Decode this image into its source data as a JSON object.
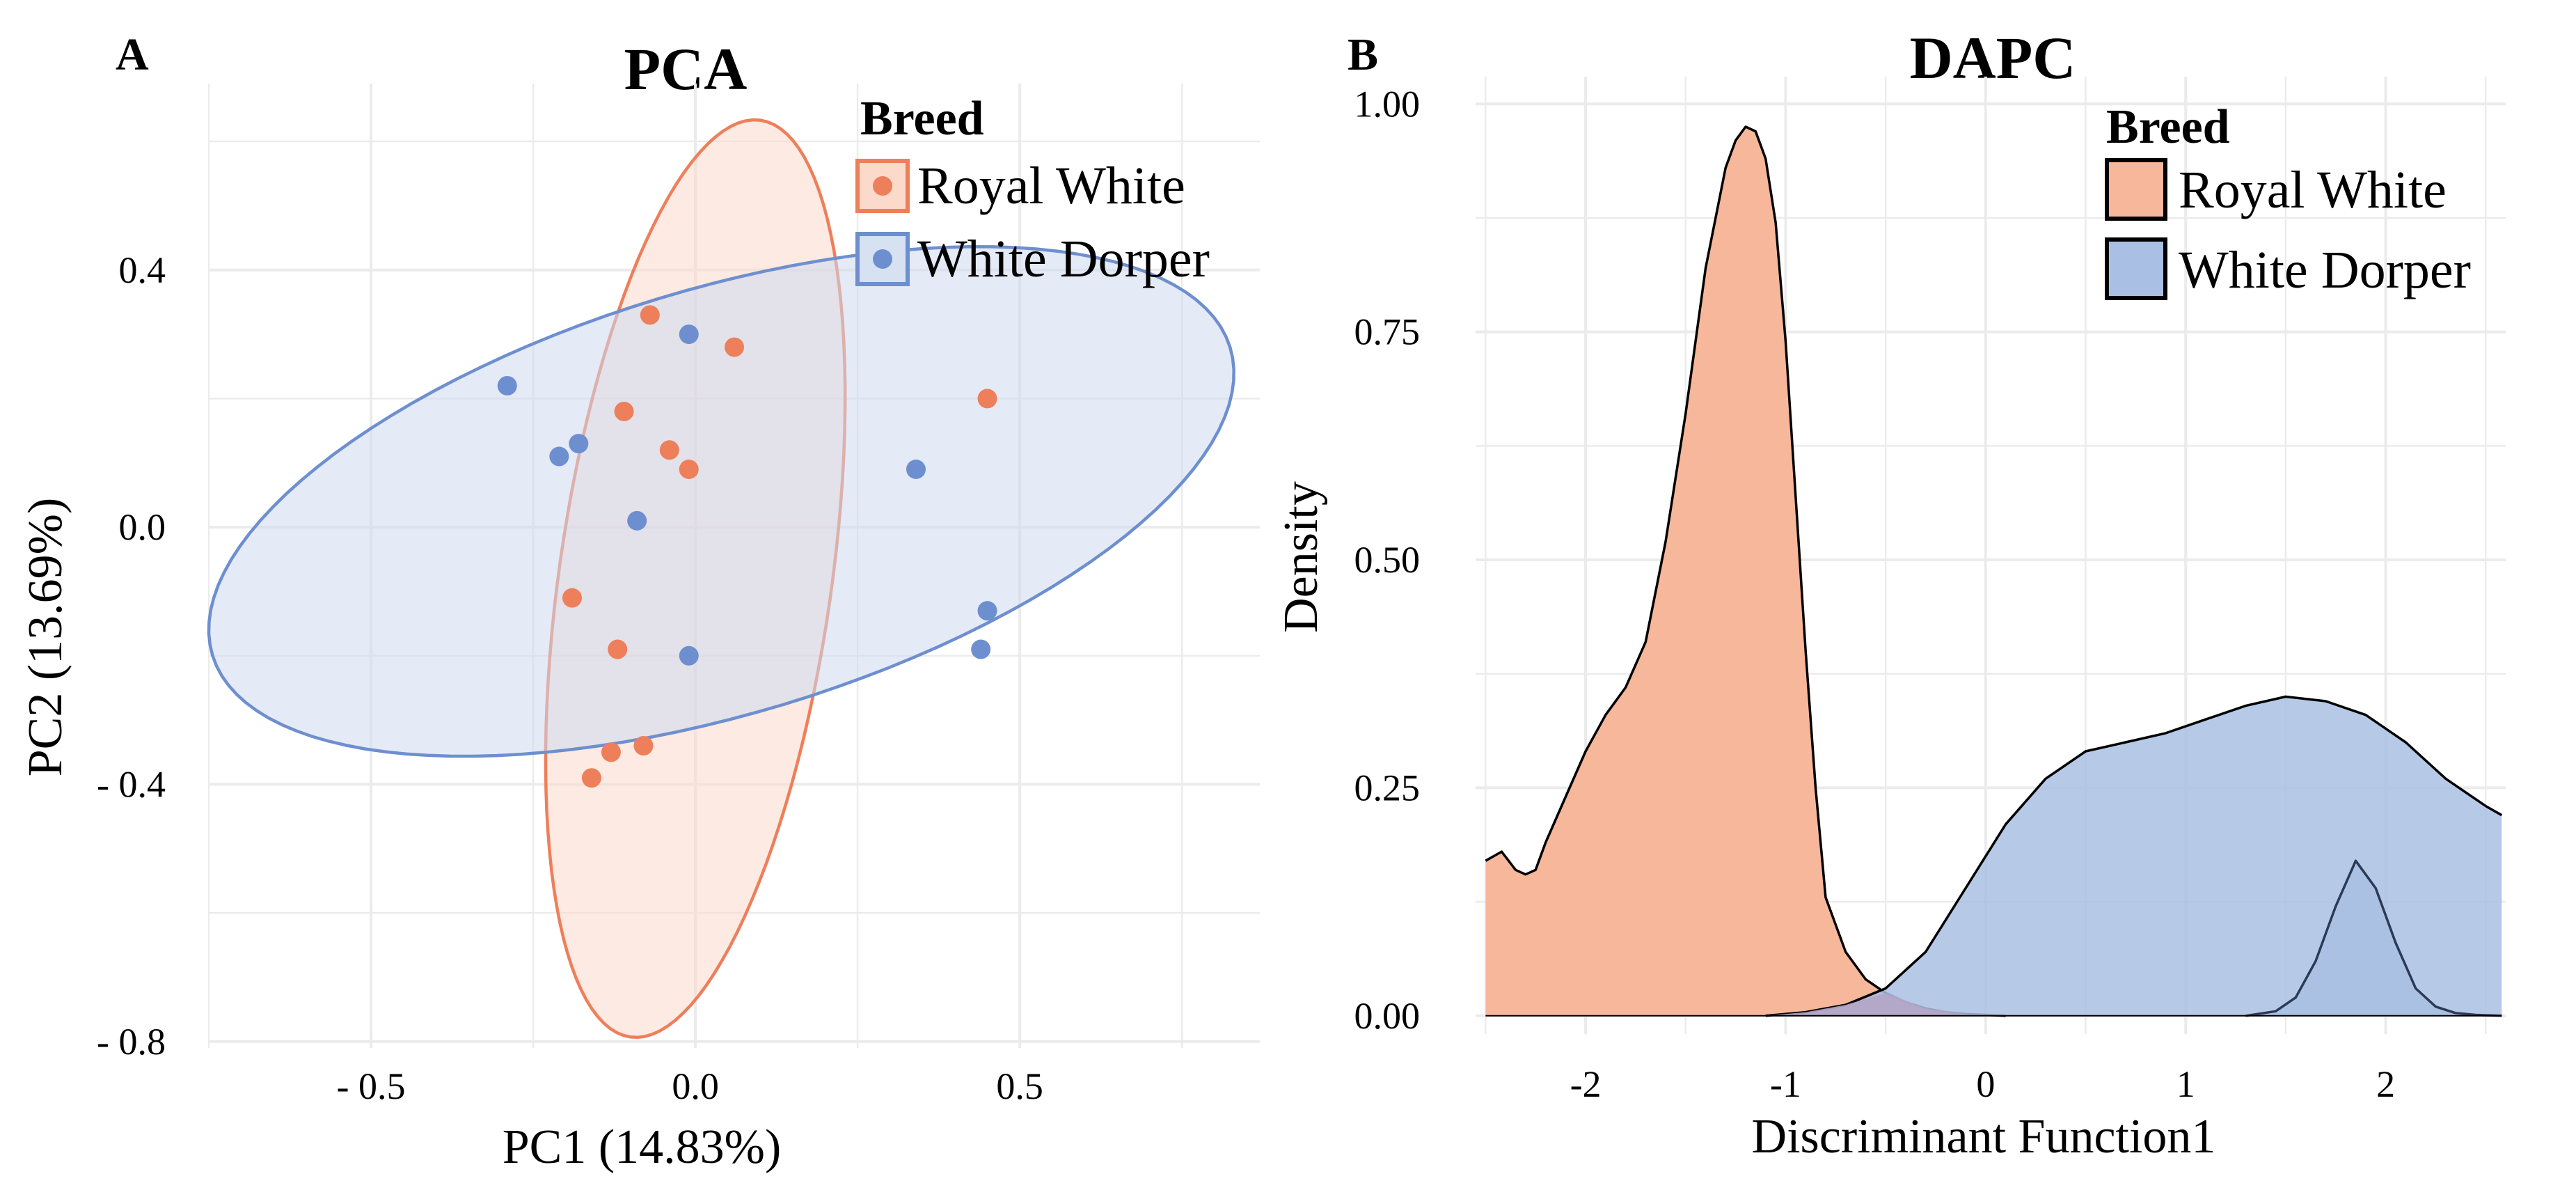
{
  "figure": {
    "panel_a": {
      "letter": "A",
      "legend_title": "Breed",
      "legend_items": [
        {
          "label": "Royal White",
          "color": "#ee7f5b"
        },
        {
          "label": "White Dorper",
          "color": "#6e8fcf"
        }
      ]
    },
    "panel_b": {
      "letter": "B",
      "legend_title": "Breed",
      "legend_items": [
        {
          "label": "Royal White",
          "color": "#f6b79a"
        },
        {
          "label": "White Dorper",
          "color": "#a9bfe3"
        }
      ]
    }
  },
  "chart_data": [
    {
      "type": "scatter",
      "title": "PCA",
      "xlabel": "PC1 (14.83%)",
      "ylabel": "PC2 (13.69%)",
      "xlim": [
        -0.75,
        0.87
      ],
      "ylim": [
        -0.81,
        0.69
      ],
      "grid": true,
      "xticks": [
        -0.5,
        0.0,
        0.5
      ],
      "xtick_labels": [
        "- 0.5",
        "0.0",
        "0.5"
      ],
      "yticks": [
        0.4,
        0.0,
        -0.4,
        -0.8
      ],
      "ytick_labels": [
        "0.4",
        "0.0",
        "- 0.4",
        "- 0.8"
      ],
      "legend": "top-right",
      "series": [
        {
          "name": "Royal White",
          "color": "#ee7f5b",
          "points": [
            {
              "x": -0.07,
              "y": 0.33
            },
            {
              "x": 0.06,
              "y": 0.28
            },
            {
              "x": -0.11,
              "y": 0.18
            },
            {
              "x": -0.04,
              "y": 0.12
            },
            {
              "x": -0.01,
              "y": 0.09
            },
            {
              "x": 0.45,
              "y": 0.2
            },
            {
              "x": -0.19,
              "y": -0.11
            },
            {
              "x": -0.12,
              "y": -0.19
            },
            {
              "x": -0.08,
              "y": -0.34
            },
            {
              "x": -0.13,
              "y": -0.35
            },
            {
              "x": -0.16,
              "y": -0.39
            }
          ],
          "ellipse": {
            "cx": 0.0,
            "cy": -0.08,
            "rx": 0.21,
            "ry": 0.72,
            "angle_deg": -8
          }
        },
        {
          "name": "White Dorper",
          "color": "#6e8fcf",
          "points": [
            {
              "x": -0.29,
              "y": 0.22
            },
            {
              "x": -0.18,
              "y": 0.13
            },
            {
              "x": -0.21,
              "y": 0.11
            },
            {
              "x": -0.09,
              "y": 0.01
            },
            {
              "x": -0.01,
              "y": 0.3
            },
            {
              "x": 0.34,
              "y": 0.09
            },
            {
              "x": 0.45,
              "y": -0.13
            },
            {
              "x": 0.44,
              "y": -0.19
            },
            {
              "x": -0.01,
              "y": -0.2
            }
          ],
          "ellipse": {
            "cx": 0.04,
            "cy": 0.04,
            "rx": 0.82,
            "ry": 0.33,
            "angle_deg": 17
          }
        }
      ]
    },
    {
      "type": "area",
      "title": "DAPC",
      "xlabel": "Discriminant Function1",
      "ylabel": "Density",
      "xlim": [
        -2.55,
        2.6
      ],
      "ylim": [
        -0.02,
        1.03
      ],
      "grid": true,
      "xticks": [
        -2,
        -1,
        0,
        1,
        2
      ],
      "xtick_labels": [
        "-2",
        "-1",
        "0",
        "1",
        "2"
      ],
      "yticks": [
        0.0,
        0.25,
        0.5,
        0.75,
        1.0
      ],
      "ytick_labels": [
        "0.00",
        "0.25",
        "0.50",
        "0.75",
        "1.00"
      ],
      "legend": "top-right",
      "series": [
        {
          "name": "Royal White",
          "fill": "#f6b79a",
          "x": [
            -2.5,
            -2.42,
            -2.35,
            -2.3,
            -2.25,
            -2.2,
            -2.1,
            -2.0,
            -1.9,
            -1.8,
            -1.7,
            -1.6,
            -1.5,
            -1.4,
            -1.3,
            -1.25,
            -1.2,
            -1.15,
            -1.1,
            -1.05,
            -1.0,
            -0.95,
            -0.9,
            -0.85,
            -0.8,
            -0.7,
            -0.6,
            -0.5,
            -0.4,
            -0.3,
            -0.2,
            -0.1,
            0.0,
            0.1
          ],
          "values": [
            0.17,
            0.18,
            0.16,
            0.155,
            0.16,
            0.19,
            0.24,
            0.29,
            0.33,
            0.36,
            0.41,
            0.52,
            0.66,
            0.82,
            0.93,
            0.96,
            0.975,
            0.97,
            0.94,
            0.87,
            0.74,
            0.57,
            0.4,
            0.25,
            0.13,
            0.07,
            0.04,
            0.025,
            0.015,
            0.008,
            0.004,
            0.002,
            0.001,
            0.0
          ]
        },
        {
          "name": "White Dorper",
          "fill": "#a9bfe3",
          "x": [
            -1.1,
            -0.9,
            -0.7,
            -0.5,
            -0.3,
            -0.1,
            0.1,
            0.3,
            0.5,
            0.7,
            0.9,
            1.1,
            1.3,
            1.5,
            1.7,
            1.9,
            2.1,
            2.3,
            2.5,
            2.58
          ],
          "values": [
            0.0,
            0.004,
            0.012,
            0.03,
            0.07,
            0.14,
            0.21,
            0.26,
            0.29,
            0.3,
            0.31,
            0.325,
            0.34,
            0.35,
            0.345,
            0.33,
            0.3,
            0.26,
            0.23,
            0.22
          ]
        },
        {
          "name": "White Dorper",
          "fill": "#a9bfe3",
          "x": [
            1.3,
            1.45,
            1.55,
            1.65,
            1.75,
            1.85,
            1.95,
            2.05,
            2.15,
            2.25,
            2.35,
            2.45,
            2.58
          ],
          "values": [
            0.0,
            0.005,
            0.02,
            0.06,
            0.12,
            0.17,
            0.14,
            0.08,
            0.03,
            0.01,
            0.003,
            0.001,
            0.0
          ]
        }
      ]
    }
  ]
}
